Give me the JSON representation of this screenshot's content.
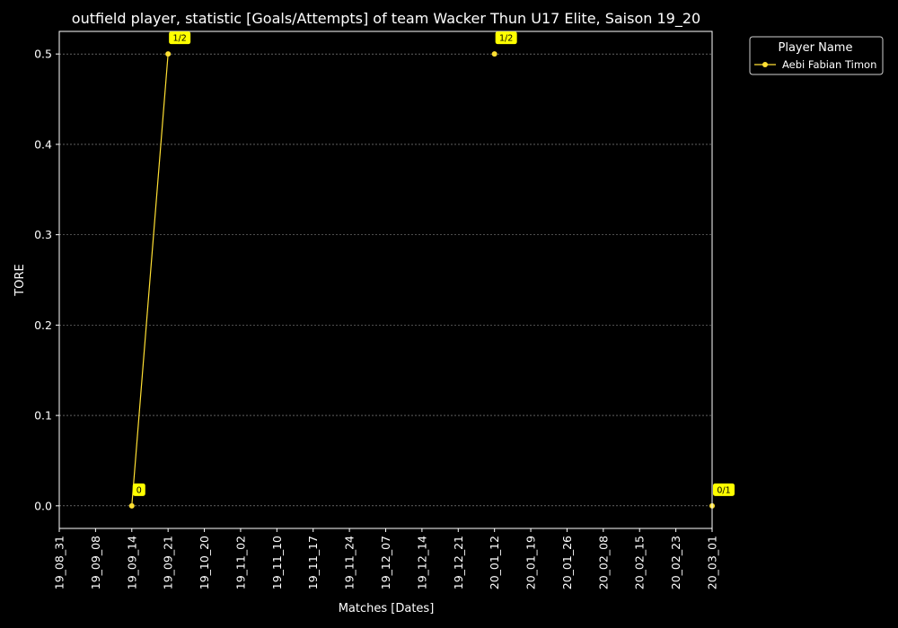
{
  "chart_data": {
    "type": "line",
    "title": "outfield player, statistic [Goals/Attempts] of team Wacker Thun U17 Elite, Saison 19_20",
    "xlabel": "Matches [Dates]",
    "ylabel": "TORE",
    "categories": [
      "19_08_31",
      "19_09_08",
      "19_09_14",
      "19_09_21",
      "19_10_20",
      "19_11_02",
      "19_11_10",
      "19_11_17",
      "19_11_24",
      "19_12_07",
      "19_12_14",
      "19_12_21",
      "20_01_12",
      "20_01_19",
      "20_01_26",
      "20_02_08",
      "20_02_15",
      "20_02_23",
      "20_03_01"
    ],
    "yticks": [
      "0.0",
      "0.1",
      "0.2",
      "0.3",
      "0.4",
      "0.5"
    ],
    "ylim": [
      -0.025,
      0.525
    ],
    "grid": true,
    "legend": {
      "title": "Player Name",
      "position": "outside-top-right"
    },
    "series": [
      {
        "name": "Aebi Fabian Timon",
        "color": "#ffe033",
        "points": [
          {
            "x": "19_09_14",
            "y": 0.0,
            "label": "0",
            "connected_to_next": true
          },
          {
            "x": "19_09_21",
            "y": 0.5,
            "label": "1/2",
            "connected_to_next": false
          },
          {
            "x": "20_01_12",
            "y": 0.5,
            "label": "1/2",
            "connected_to_next": false
          },
          {
            "x": "20_03_01",
            "y": 0.0,
            "label": "0/1",
            "connected_to_next": false
          }
        ]
      }
    ],
    "label_box_color": "#ffff00",
    "background": "#000000",
    "foreground": "#ffffff"
  }
}
